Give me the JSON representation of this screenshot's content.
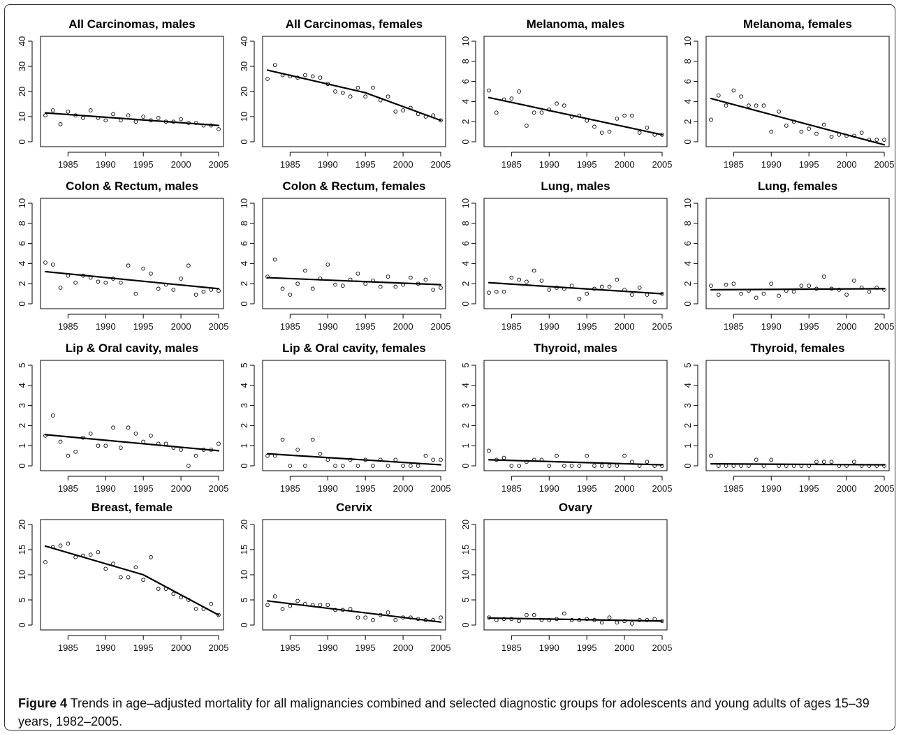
{
  "figure": {
    "label": "Figure 4",
    "caption": "Trends in age–adjusted mortality for all malignancies combined and selected diagnostic groups for adolescents and young adults of ages 15–39 years, 1982–2005."
  },
  "chart_data": [
    {
      "type": "scatter",
      "title": "All Carcinomas, males",
      "xlim": [
        1982,
        2005
      ],
      "ylim": [
        0,
        40
      ],
      "yticks": [
        0,
        10,
        20,
        30,
        40
      ],
      "xticks": [
        1985,
        1990,
        1995,
        2000,
        2005
      ],
      "x": [
        1982,
        1983,
        1984,
        1985,
        1986,
        1987,
        1988,
        1989,
        1990,
        1991,
        1992,
        1993,
        1994,
        1995,
        1996,
        1997,
        1998,
        1999,
        2000,
        2001,
        2002,
        2003,
        2004,
        2005
      ],
      "y": [
        10.5,
        12.5,
        7.0,
        12.0,
        10.5,
        9.5,
        12.5,
        9.5,
        8.5,
        11.0,
        8.5,
        10.5,
        8.0,
        10.0,
        8.5,
        9.5,
        8.0,
        8.0,
        9.0,
        7.5,
        7.5,
        6.5,
        6.5,
        5.0
      ],
      "trend": [
        [
          1982,
          11.5
        ],
        [
          2005,
          6.5
        ]
      ]
    },
    {
      "type": "scatter",
      "title": "All Carcinomas, females",
      "xlim": [
        1982,
        2005
      ],
      "ylim": [
        0,
        40
      ],
      "yticks": [
        0,
        10,
        20,
        30,
        40
      ],
      "xticks": [
        1985,
        1990,
        1995,
        2000,
        2005
      ],
      "x": [
        1982,
        1983,
        1984,
        1985,
        1986,
        1987,
        1988,
        1989,
        1990,
        1991,
        1992,
        1993,
        1994,
        1995,
        1996,
        1997,
        1998,
        1999,
        2000,
        2001,
        2002,
        2003,
        2004,
        2005
      ],
      "y": [
        25.0,
        30.5,
        26.5,
        26.0,
        25.5,
        26.5,
        26.0,
        25.5,
        23.0,
        20.0,
        19.5,
        18.0,
        21.5,
        18.0,
        21.5,
        16.5,
        18.0,
        12.0,
        12.5,
        13.5,
        11.0,
        10.0,
        10.5,
        8.5
      ],
      "trend": [
        [
          1982,
          28.5
        ],
        [
          1995,
          19.5
        ],
        [
          2005,
          8.5
        ]
      ]
    },
    {
      "type": "scatter",
      "title": "Melanoma, males",
      "xlim": [
        1982,
        2005
      ],
      "ylim": [
        0,
        10
      ],
      "yticks": [
        0,
        2,
        4,
        6,
        8,
        10
      ],
      "xticks": [
        1985,
        1990,
        1995,
        2000,
        2005
      ],
      "x": [
        1982,
        1983,
        1984,
        1985,
        1986,
        1987,
        1988,
        1989,
        1990,
        1991,
        1992,
        1993,
        1994,
        1995,
        1996,
        1997,
        1998,
        1999,
        2000,
        2001,
        2002,
        2003,
        2004,
        2005
      ],
      "y": [
        5.1,
        2.9,
        4.2,
        4.3,
        5.0,
        1.6,
        2.9,
        2.9,
        3.2,
        3.8,
        3.6,
        2.5,
        2.6,
        2.1,
        1.5,
        0.9,
        1.0,
        2.3,
        2.6,
        2.6,
        0.9,
        1.4,
        0.7,
        0.7
      ],
      "trend": [
        [
          1982,
          4.4
        ],
        [
          2005,
          0.7
        ]
      ]
    },
    {
      "type": "scatter",
      "title": "Melanoma, females",
      "xlim": [
        1982,
        2005
      ],
      "ylim": [
        0,
        10
      ],
      "yticks": [
        0,
        2,
        4,
        6,
        8,
        10
      ],
      "xticks": [
        1985,
        1990,
        1995,
        2000,
        2005
      ],
      "x": [
        1982,
        1983,
        1984,
        1985,
        1986,
        1987,
        1988,
        1989,
        1990,
        1991,
        1992,
        1993,
        1994,
        1995,
        1996,
        1997,
        1998,
        1999,
        2000,
        2001,
        2002,
        2003,
        2004,
        2005
      ],
      "y": [
        2.2,
        4.6,
        3.6,
        5.1,
        4.5,
        3.6,
        3.6,
        3.6,
        1.0,
        3.0,
        1.6,
        2.0,
        1.0,
        1.3,
        0.8,
        1.7,
        0.5,
        0.7,
        0.6,
        0.6,
        0.9,
        0.2,
        0.2,
        0.2
      ],
      "trend": [
        [
          1982,
          4.3
        ],
        [
          2005,
          -0.3
        ]
      ]
    },
    {
      "type": "scatter",
      "title": "Colon & Rectum, males",
      "xlim": [
        1982,
        2005
      ],
      "ylim": [
        0,
        10
      ],
      "yticks": [
        0,
        2,
        4,
        6,
        8,
        10
      ],
      "xticks": [
        1985,
        1990,
        1995,
        2000,
        2005
      ],
      "x": [
        1982,
        1983,
        1984,
        1985,
        1986,
        1987,
        1988,
        1989,
        1990,
        1991,
        1992,
        1993,
        1994,
        1995,
        1996,
        1997,
        1998,
        1999,
        2000,
        2001,
        2002,
        2003,
        2004,
        2005
      ],
      "y": [
        4.1,
        3.9,
        1.6,
        2.8,
        2.1,
        2.8,
        2.6,
        2.2,
        2.1,
        2.5,
        2.1,
        3.8,
        1.0,
        3.5,
        3.0,
        1.5,
        1.9,
        1.4,
        2.5,
        3.8,
        0.9,
        1.2,
        1.4,
        1.3
      ],
      "trend": [
        [
          1982,
          3.2
        ],
        [
          2005,
          1.5
        ]
      ]
    },
    {
      "type": "scatter",
      "title": "Colon & Rectum, females",
      "xlim": [
        1982,
        2005
      ],
      "ylim": [
        0,
        10
      ],
      "yticks": [
        0,
        2,
        4,
        6,
        8,
        10
      ],
      "xticks": [
        1985,
        1990,
        1995,
        2000,
        2005
      ],
      "x": [
        1982,
        1983,
        1984,
        1985,
        1986,
        1987,
        1988,
        1989,
        1990,
        1991,
        1992,
        1993,
        1994,
        1995,
        1996,
        1997,
        1998,
        1999,
        2000,
        2001,
        2002,
        2003,
        2004,
        2005
      ],
      "y": [
        2.7,
        4.4,
        1.5,
        0.9,
        2.0,
        3.3,
        1.5,
        2.5,
        3.9,
        1.9,
        1.8,
        2.4,
        3.0,
        2.0,
        2.3,
        1.7,
        2.7,
        1.7,
        1.9,
        2.6,
        2.0,
        2.4,
        1.4,
        1.6
      ],
      "trend": [
        [
          1982,
          2.6
        ],
        [
          2005,
          1.9
        ]
      ]
    },
    {
      "type": "scatter",
      "title": "Lung, males",
      "xlim": [
        1982,
        2005
      ],
      "ylim": [
        0,
        10
      ],
      "yticks": [
        0,
        2,
        4,
        6,
        8,
        10
      ],
      "xticks": [
        1985,
        1990,
        1995,
        2000,
        2005
      ],
      "x": [
        1982,
        1983,
        1984,
        1985,
        1986,
        1987,
        1988,
        1989,
        1990,
        1991,
        1992,
        1993,
        1994,
        1995,
        1996,
        1997,
        1998,
        1999,
        2000,
        2001,
        2002,
        2003,
        2004,
        2005
      ],
      "y": [
        1.1,
        1.2,
        1.2,
        2.6,
        2.4,
        2.2,
        3.3,
        2.3,
        1.4,
        1.6,
        1.5,
        1.8,
        0.5,
        1.0,
        1.5,
        1.7,
        1.7,
        2.4,
        1.4,
        0.9,
        1.6,
        0.9,
        0.2,
        1.0
      ],
      "trend": [
        [
          1982,
          2.1
        ],
        [
          2005,
          1.0
        ]
      ]
    },
    {
      "type": "scatter",
      "title": "Lung, females",
      "xlim": [
        1982,
        2005
      ],
      "ylim": [
        0,
        10
      ],
      "yticks": [
        0,
        2,
        4,
        6,
        8,
        10
      ],
      "xticks": [
        1985,
        1990,
        1995,
        2000,
        2005
      ],
      "x": [
        1982,
        1983,
        1984,
        1985,
        1986,
        1987,
        1988,
        1989,
        1990,
        1991,
        1992,
        1993,
        1994,
        1995,
        1996,
        1997,
        1998,
        1999,
        2000,
        2001,
        2002,
        2003,
        2004,
        2005
      ],
      "y": [
        1.8,
        0.9,
        1.9,
        2.0,
        1.0,
        1.3,
        0.6,
        1.0,
        2.0,
        0.8,
        1.3,
        1.2,
        1.8,
        1.8,
        1.5,
        2.7,
        1.5,
        1.4,
        0.9,
        2.3,
        1.6,
        1.2,
        1.6,
        1.4
      ],
      "trend": [
        [
          1982,
          1.4
        ],
        [
          2005,
          1.5
        ]
      ]
    },
    {
      "type": "scatter",
      "title": "Lip & Oral cavity, males",
      "xlim": [
        1982,
        2005
      ],
      "ylim": [
        0,
        5
      ],
      "yticks": [
        0,
        1,
        2,
        3,
        4,
        5
      ],
      "xticks": [
        1985,
        1990,
        1995,
        2000,
        2005
      ],
      "x": [
        1982,
        1983,
        1984,
        1985,
        1986,
        1987,
        1988,
        1989,
        1990,
        1991,
        1992,
        1993,
        1994,
        1995,
        1996,
        1997,
        1998,
        1999,
        2000,
        2001,
        2002,
        2003,
        2004,
        2005
      ],
      "y": [
        1.5,
        2.5,
        1.2,
        0.5,
        0.7,
        1.4,
        1.6,
        1.0,
        1.0,
        1.9,
        0.9,
        1.9,
        1.6,
        1.2,
        1.5,
        1.1,
        1.1,
        0.9,
        0.8,
        0.0,
        0.5,
        0.8,
        0.8,
        1.1
      ],
      "trend": [
        [
          1982,
          1.55
        ],
        [
          2005,
          0.75
        ]
      ]
    },
    {
      "type": "scatter",
      "title": "Lip & Oral cavity, females",
      "xlim": [
        1982,
        2005
      ],
      "ylim": [
        0,
        5
      ],
      "yticks": [
        0,
        1,
        2,
        3,
        4,
        5
      ],
      "xticks": [
        1985,
        1990,
        1995,
        2000,
        2005
      ],
      "x": [
        1982,
        1983,
        1984,
        1985,
        1986,
        1987,
        1988,
        1989,
        1990,
        1991,
        1992,
        1993,
        1994,
        1995,
        1996,
        1997,
        1998,
        1999,
        2000,
        2001,
        2002,
        2003,
        2004,
        2005
      ],
      "y": [
        0.5,
        0.5,
        1.3,
        0.0,
        0.8,
        0.0,
        1.3,
        0.6,
        0.3,
        0.0,
        0.0,
        0.3,
        0.0,
        0.3,
        0.0,
        0.3,
        0.0,
        0.3,
        0.0,
        0.0,
        0.0,
        0.5,
        0.3,
        0.3
      ],
      "trend": [
        [
          1982,
          0.6
        ],
        [
          2005,
          0.05
        ]
      ]
    },
    {
      "type": "scatter",
      "title": "Thyroid, males",
      "xlim": [
        1982,
        2005
      ],
      "ylim": [
        0,
        5
      ],
      "yticks": [
        0,
        1,
        2,
        3,
        4,
        5
      ],
      "xticks": [
        1985,
        1990,
        1995,
        2000,
        2005
      ],
      "x": [
        1982,
        1983,
        1984,
        1985,
        1986,
        1987,
        1988,
        1989,
        1990,
        1991,
        1992,
        1993,
        1994,
        1995,
        1996,
        1997,
        1998,
        1999,
        2000,
        2001,
        2002,
        2003,
        2004,
        2005
      ],
      "y": [
        0.75,
        0.3,
        0.4,
        0.0,
        0.0,
        0.2,
        0.3,
        0.3,
        0.0,
        0.5,
        0.0,
        0.0,
        0.0,
        0.5,
        0.0,
        0.0,
        0.0,
        0.0,
        0.5,
        0.2,
        0.0,
        0.2,
        0.0,
        0.0
      ],
      "trend": [
        [
          1982,
          0.3
        ],
        [
          2005,
          0.05
        ]
      ]
    },
    {
      "type": "scatter",
      "title": "Thyroid, females",
      "xlim": [
        1982,
        2005
      ],
      "ylim": [
        0,
        5
      ],
      "yticks": [
        0,
        1,
        2,
        3,
        4,
        5
      ],
      "xticks": [
        1985,
        1990,
        1995,
        2000,
        2005
      ],
      "x": [
        1982,
        1983,
        1984,
        1985,
        1986,
        1987,
        1988,
        1989,
        1990,
        1991,
        1992,
        1993,
        1994,
        1995,
        1996,
        1997,
        1998,
        1999,
        2000,
        2001,
        2002,
        2003,
        2004,
        2005
      ],
      "y": [
        0.5,
        0.0,
        0.0,
        0.0,
        0.0,
        0.0,
        0.3,
        0.0,
        0.3,
        0.0,
        0.0,
        0.0,
        0.0,
        0.0,
        0.2,
        0.2,
        0.2,
        0.0,
        0.0,
        0.2,
        0.0,
        0.0,
        0.0,
        0.0
      ],
      "trend": [
        [
          1982,
          0.1
        ],
        [
          2005,
          0.05
        ]
      ]
    },
    {
      "type": "scatter",
      "title": "Breast, female",
      "xlim": [
        1982,
        2005
      ],
      "ylim": [
        0,
        20
      ],
      "yticks": [
        0,
        5,
        10,
        15,
        20
      ],
      "xticks": [
        1985,
        1990,
        1995,
        2000,
        2005
      ],
      "x": [
        1982,
        1983,
        1984,
        1985,
        1986,
        1987,
        1988,
        1989,
        1990,
        1991,
        1992,
        1993,
        1994,
        1995,
        1996,
        1997,
        1998,
        1999,
        2000,
        2001,
        2002,
        2003,
        2004,
        2005
      ],
      "y": [
        12.5,
        15.5,
        15.8,
        16.2,
        13.5,
        13.8,
        14.0,
        14.5,
        11.2,
        12.2,
        9.5,
        9.5,
        11.5,
        9.0,
        13.5,
        7.2,
        7.2,
        6.2,
        5.5,
        5.0,
        3.2,
        3.2,
        4.2,
        2.0
      ],
      "trend": [
        [
          1982,
          15.7
        ],
        [
          1995,
          10.0
        ],
        [
          2005,
          2.0
        ]
      ]
    },
    {
      "type": "scatter",
      "title": "Cervix",
      "xlim": [
        1982,
        2005
      ],
      "ylim": [
        0,
        20
      ],
      "yticks": [
        0,
        5,
        10,
        15,
        20
      ],
      "xticks": [
        1985,
        1990,
        1995,
        2000,
        2005
      ],
      "x": [
        1982,
        1983,
        1984,
        1985,
        1986,
        1987,
        1988,
        1989,
        1990,
        1991,
        1992,
        1993,
        1994,
        1995,
        1996,
        1997,
        1998,
        1999,
        2000,
        2001,
        2002,
        2003,
        2004,
        2005
      ],
      "y": [
        4.0,
        5.7,
        3.2,
        3.8,
        4.8,
        4.2,
        4.0,
        4.0,
        4.0,
        3.0,
        3.0,
        3.2,
        1.5,
        1.5,
        1.0,
        2.0,
        2.5,
        1.0,
        1.5,
        1.5,
        1.2,
        1.0,
        1.0,
        1.5
      ],
      "trend": [
        [
          1982,
          4.8
        ],
        [
          2005,
          0.6
        ]
      ]
    },
    {
      "type": "scatter",
      "title": "Ovary",
      "xlim": [
        1982,
        2005
      ],
      "ylim": [
        0,
        20
      ],
      "yticks": [
        0,
        5,
        10,
        15,
        20
      ],
      "xticks": [
        1985,
        1990,
        1995,
        2000,
        2005
      ],
      "x": [
        1982,
        1983,
        1984,
        1985,
        1986,
        1987,
        1988,
        1989,
        1990,
        1991,
        1992,
        1993,
        1994,
        1995,
        1996,
        1997,
        1998,
        1999,
        2000,
        2001,
        2002,
        2003,
        2004,
        2005
      ],
      "y": [
        1.5,
        1.0,
        1.2,
        1.2,
        0.8,
        2.0,
        2.0,
        1.0,
        1.0,
        1.2,
        2.3,
        1.0,
        1.0,
        1.2,
        1.0,
        0.5,
        1.5,
        0.5,
        0.8,
        0.3,
        1.0,
        1.0,
        1.2,
        0.8
      ],
      "trend": [
        [
          1982,
          1.4
        ],
        [
          2005,
          0.8
        ]
      ]
    }
  ]
}
